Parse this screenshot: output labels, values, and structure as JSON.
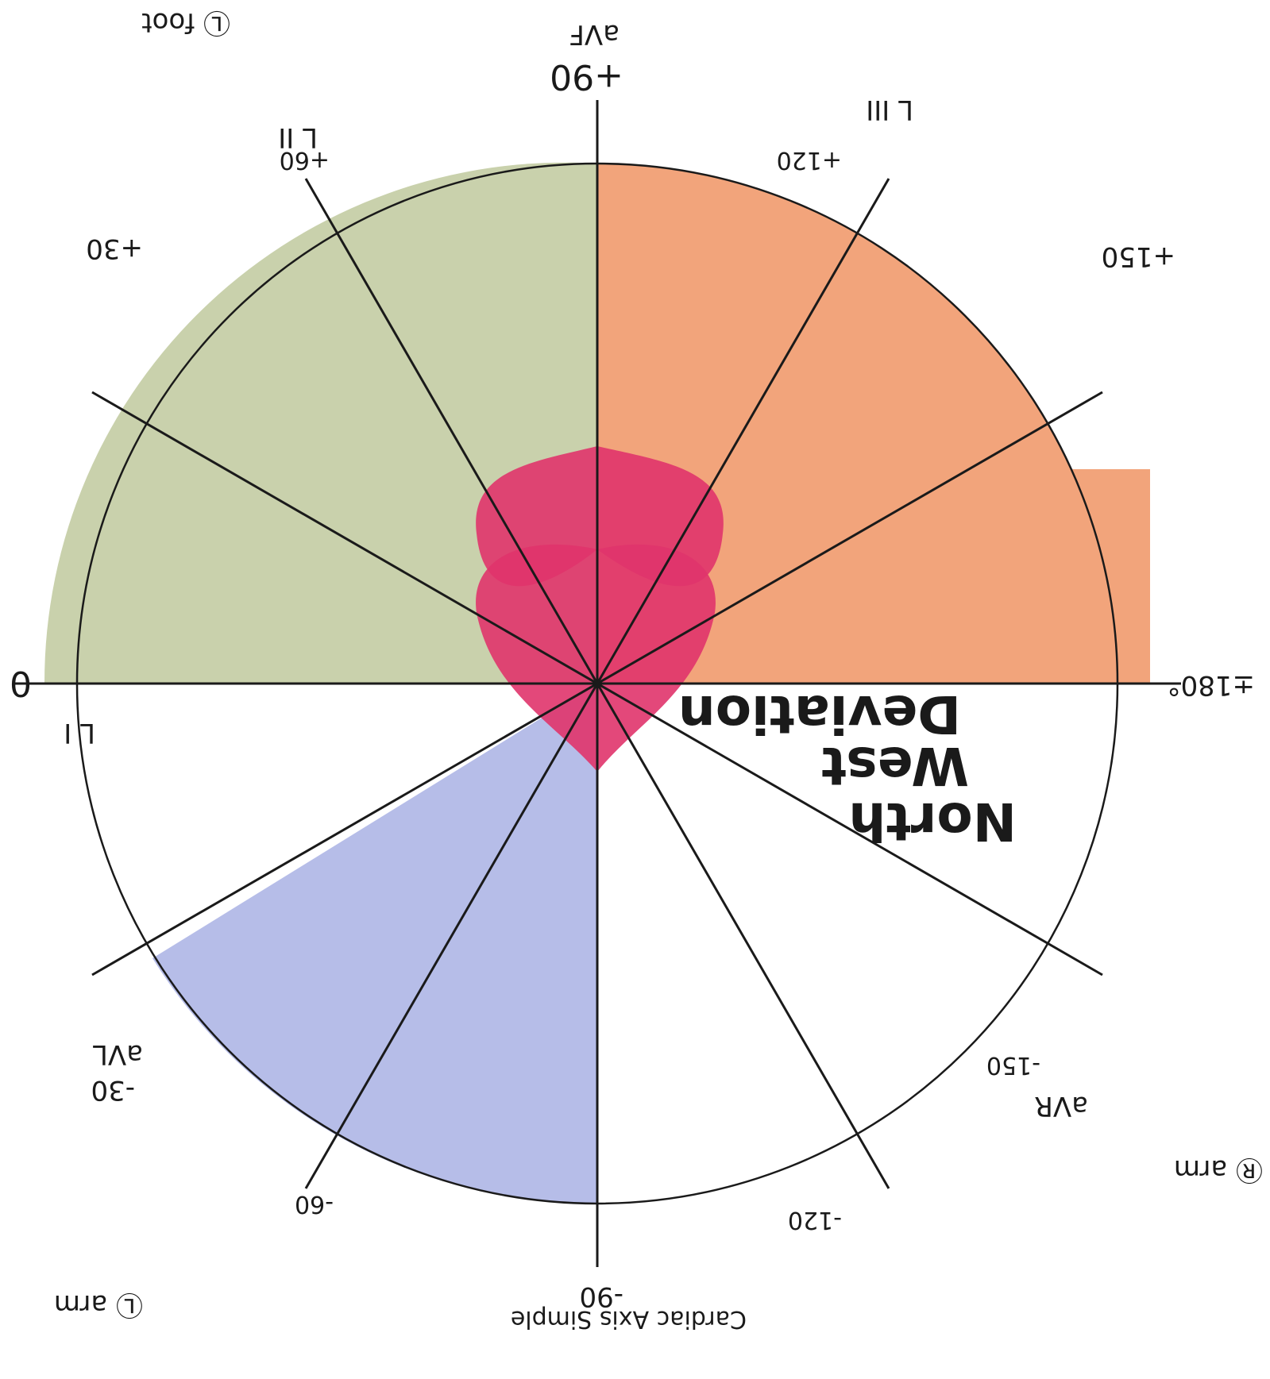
{
  "colors": {
    "green_region": "#c9d1ac",
    "orange_region": "#f2a47b",
    "blue_region": "#b6bde8",
    "heart": "#e0346b",
    "ink": "#1a1a1a"
  },
  "labels": {
    "zero": "0",
    "lead_one": "L I",
    "plus_30": "+30",
    "lead_two": "L II",
    "plus_60": "+60",
    "plus_90": "+90",
    "avf": "aVF",
    "lead_three": "L III",
    "plus_120": "+120",
    "plus_150": "+150",
    "plus_minus_180": "±180°",
    "minus_30": "-30",
    "avl": "aVL",
    "minus_60": "-60",
    "minus_90": "-90",
    "minus_120": "-120",
    "minus_150": "-150",
    "avr": "aVR",
    "north_west_deviation": [
      "North",
      "West",
      "Deviation"
    ],
    "cardiac_axis_simple": "Cardiac Axis Simple",
    "left_arm": "Ⓛ arm",
    "right_arm": "Ⓡ arm",
    "left_foot": "Ⓛ foot"
  },
  "regions": [
    {
      "name": "normal-axis-region",
      "color": "green_region"
    },
    {
      "name": "right-axis-deviation-region",
      "color": "orange_region"
    },
    {
      "name": "left-axis-deviation-region",
      "color": "blue_region"
    },
    {
      "name": "north-west-deviation-region",
      "color": "white"
    }
  ]
}
